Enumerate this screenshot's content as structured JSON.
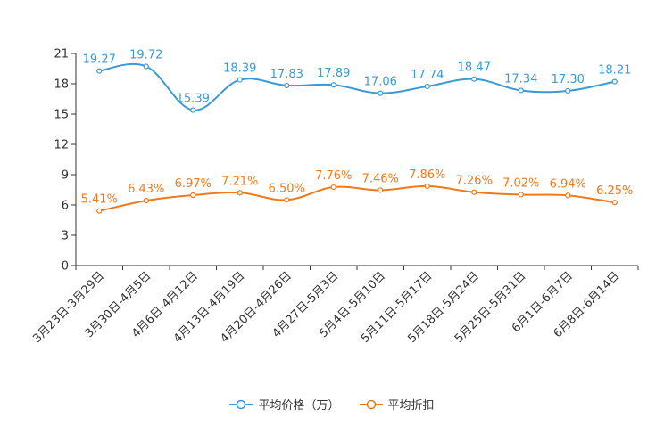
{
  "chart_data": {
    "type": "line",
    "title": "",
    "xlabel": "",
    "ylabel": "",
    "ylim": [
      0,
      21
    ],
    "yticks": [
      0,
      3,
      6,
      9,
      12,
      15,
      18,
      21
    ],
    "grid": false,
    "legend_position": "bottom",
    "categories": [
      "3月23日-3月29日",
      "3月30日-4月5日",
      "4月6日-4月12日",
      "4月13日-4月19日",
      "4月20日-4月26日",
      "4月27日-5月3日",
      "5月4日-5月10日",
      "5月11日-5月17日",
      "5月18日-5月24日",
      "5月25日-5月31日",
      "6月1日-6月7日",
      "6月8日-6月14日"
    ],
    "series": [
      {
        "name": "平均价格（万）",
        "color": "#3a9ad4",
        "values": [
          19.27,
          19.72,
          15.39,
          18.39,
          17.83,
          17.89,
          17.06,
          17.74,
          18.47,
          17.34,
          17.3,
          18.21
        ],
        "labels": [
          "19.27",
          "19.72",
          "15.39",
          "18.39",
          "17.83",
          "17.89",
          "17.06",
          "17.74",
          "18.47",
          "17.34",
          "17.30",
          "18.21"
        ]
      },
      {
        "name": "平均折扣",
        "color": "#f07a1a",
        "values": [
          5.41,
          6.43,
          6.97,
          7.21,
          6.5,
          7.76,
          7.46,
          7.86,
          7.26,
          7.02,
          6.94,
          6.25
        ],
        "labels": [
          "5.41%",
          "6.43%",
          "6.97%",
          "7.21%",
          "6.50%",
          "7.76%",
          "7.46%",
          "7.86%",
          "7.26%",
          "7.02%",
          "6.94%",
          "6.25%"
        ]
      }
    ]
  }
}
